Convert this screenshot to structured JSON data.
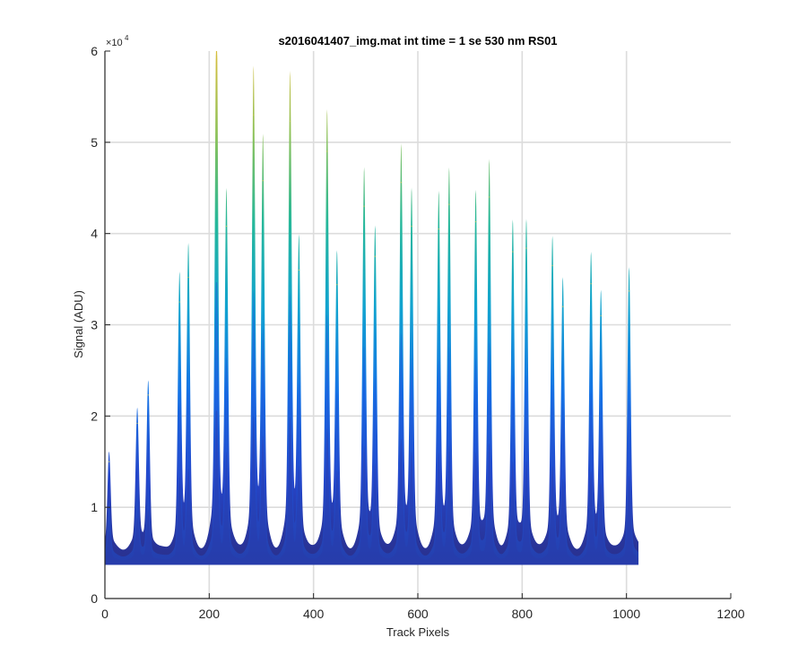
{
  "chart_data": {
    "type": "area",
    "title": "s2016041407_img.mat int time = 1 se  530 nm RS01",
    "xlabel": "Track Pixels",
    "ylabel": "Signal (ADU)",
    "xlim": [
      0,
      1200
    ],
    "ylim": [
      0,
      60000
    ],
    "xticks": [
      0,
      200,
      400,
      600,
      800,
      1000,
      1200
    ],
    "yticks": [
      0,
      10000,
      20000,
      30000,
      40000,
      50000,
      60000
    ],
    "ytick_labels": [
      "0",
      "1",
      "2",
      "3",
      "4",
      "5",
      "6"
    ],
    "y_exponent_label": "×10",
    "y_exponent_power": "4",
    "grid": true,
    "data_extent": [
      0,
      1023
    ],
    "baseline": 3700,
    "trough_level": 5500,
    "colormap": [
      "#2a2f8a",
      "#2545c9",
      "#1573e6",
      "#11a3d0",
      "#26b89a",
      "#8bc25a",
      "#d8be3c"
    ],
    "peaks": [
      {
        "x": 8,
        "y": 15000
      },
      {
        "x": 62,
        "y": 19200
      },
      {
        "x": 83,
        "y": 22300
      },
      {
        "x": 143,
        "y": 32500
      },
      {
        "x": 160,
        "y": 35200
      },
      {
        "x": 214,
        "y": 59500
      },
      {
        "x": 233,
        "y": 40800
      },
      {
        "x": 285,
        "y": 53000
      },
      {
        "x": 303,
        "y": 45800
      },
      {
        "x": 355,
        "y": 52300
      },
      {
        "x": 372,
        "y": 36000
      },
      {
        "x": 426,
        "y": 49000
      },
      {
        "x": 445,
        "y": 34400
      },
      {
        "x": 497,
        "y": 43000
      },
      {
        "x": 518,
        "y": 37500
      },
      {
        "x": 568,
        "y": 45600
      },
      {
        "x": 588,
        "y": 40800
      },
      {
        "x": 640,
        "y": 40500
      },
      {
        "x": 660,
        "y": 43200
      },
      {
        "x": 711,
        "y": 41300
      },
      {
        "x": 737,
        "y": 44000
      },
      {
        "x": 782,
        "y": 38000
      },
      {
        "x": 808,
        "y": 38400
      },
      {
        "x": 858,
        "y": 36500
      },
      {
        "x": 878,
        "y": 32000
      },
      {
        "x": 932,
        "y": 34500
      },
      {
        "x": 951,
        "y": 31000
      },
      {
        "x": 1005,
        "y": 33700
      }
    ]
  }
}
